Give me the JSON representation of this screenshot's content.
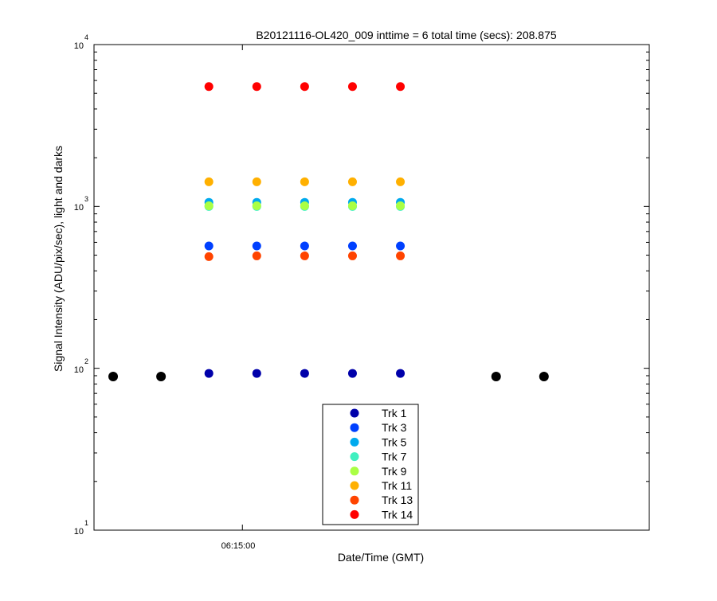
{
  "chart_data": {
    "type": "scatter",
    "title": "B20121116-OL420_009 inttime = 6 total time (secs): 208.875",
    "xlabel": "Date/Time (GMT)",
    "ylabel": "Signal Intensity (ADU/pix/sec), light and darks",
    "yscale": "log",
    "ylim": [
      10,
      10000
    ],
    "y_tick_labels": [
      {
        "base": "10",
        "exp": "1"
      },
      {
        "base": "10",
        "exp": "2"
      },
      {
        "base": "10",
        "exp": "3"
      },
      {
        "base": "10",
        "exp": "4"
      }
    ],
    "x_tick_label": "06:15:00",
    "xlim": [
      "06:13:27",
      "06:19:15"
    ],
    "x_tick_time": "06:15:00",
    "grid": false,
    "legend_position": "bottom-center",
    "dark_color": "#000000",
    "dark_points": {
      "x": [
        "06:13:39",
        "06:14:09",
        "06:17:39",
        "06:18:09"
      ],
      "y": [
        89,
        89,
        89,
        89
      ]
    },
    "light_x": [
      "06:14:39",
      "06:15:09",
      "06:15:39",
      "06:16:09",
      "06:16:39"
    ],
    "series": [
      {
        "name": "Trk 1",
        "color": "#0000aa",
        "values": [
          93,
          93,
          93,
          93,
          93
        ]
      },
      {
        "name": "Trk 3",
        "color": "#0040ff",
        "values": [
          570,
          570,
          570,
          570,
          570
        ]
      },
      {
        "name": "Trk 5",
        "color": "#00aaee",
        "values": [
          1060,
          1060,
          1060,
          1060,
          1060
        ]
      },
      {
        "name": "Trk 7",
        "color": "#40f0c0",
        "values": [
          1000,
          1000,
          1000,
          1000,
          1000
        ]
      },
      {
        "name": "Trk 9",
        "color": "#aaff44",
        "values": [
          1010,
          1010,
          1010,
          1010,
          1010
        ]
      },
      {
        "name": "Trk 11",
        "color": "#ffb000",
        "values": [
          1420,
          1420,
          1420,
          1420,
          1420
        ]
      },
      {
        "name": "Trk 13",
        "color": "#ff4400",
        "values": [
          490,
          495,
          495,
          495,
          495
        ]
      },
      {
        "name": "Trk 14",
        "color": "#ff0000",
        "values": [
          5500,
          5500,
          5500,
          5500,
          5500
        ]
      }
    ]
  }
}
